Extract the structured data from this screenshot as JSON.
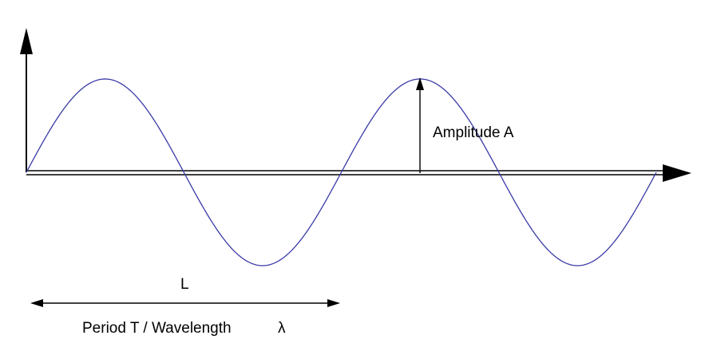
{
  "diagram": {
    "amplitude_label": "Amplitude A",
    "length_label": "L",
    "period_label": "Period T / Wavelength",
    "lambda_symbol": "λ"
  },
  "colors": {
    "wave": "#3a3aa8",
    "axis": "#000000",
    "background": "#ffffff"
  }
}
